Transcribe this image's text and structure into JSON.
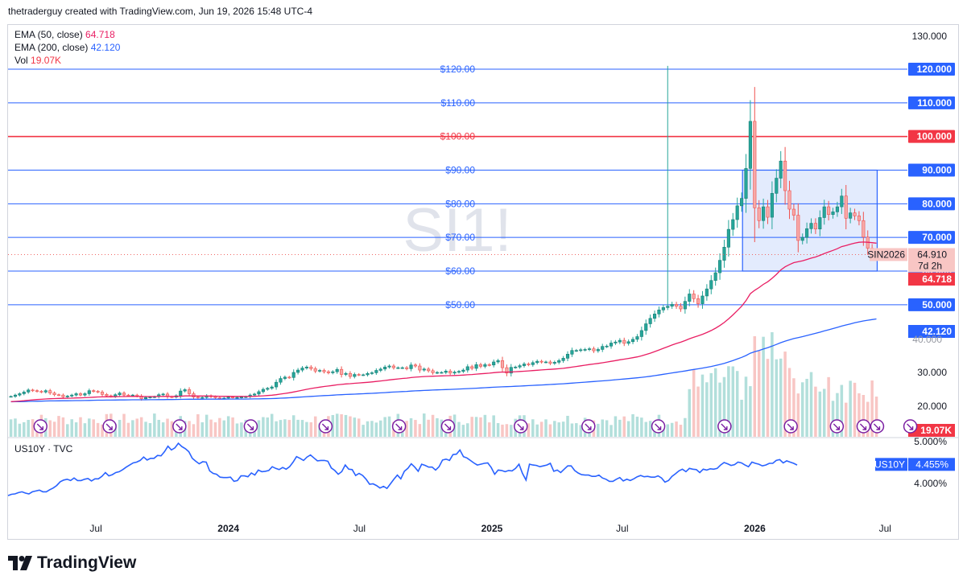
{
  "header": {
    "attribution": "thetraderguy created with TradingView.com, Jun 19, 2026 15:48 UTC-4"
  },
  "legend": {
    "ema50_label": "EMA (50, close)",
    "ema50_value": "64.718",
    "ema200_label": "EMA (200, close)",
    "ema200_value": "42.120",
    "vol_label": "Vol",
    "vol_value": "19.07K"
  },
  "watermark": "SI1!",
  "brand": {
    "name": "TradingView"
  },
  "colors": {
    "up": "#26a69a",
    "down": "#ef5350",
    "ema50": "#e91e63",
    "ema200": "#2962ff",
    "hline": "#2962ff",
    "hline_major": "#f23645",
    "box_fill": "#e3ebfd",
    "box_border": "#2962ff",
    "us10y": "#2962ff"
  },
  "chart_data": {
    "type": "candlestick",
    "symbol": "SI1!",
    "price_scale": {
      "min": 10,
      "max": 135,
      "ticks": [
        "130.000",
        "30.000",
        "20.000"
      ]
    },
    "horizontal_lines": [
      {
        "value": 120,
        "label": "$120.00",
        "axis_label": "120.000"
      },
      {
        "value": 110,
        "label": "$110.00",
        "axis_label": "110.000"
      },
      {
        "value": 100,
        "label": "$100.00",
        "axis_label": "100.000",
        "major": true
      },
      {
        "value": 90,
        "label": "$90.00",
        "axis_label": "90.000"
      },
      {
        "value": 80,
        "label": "$80.00",
        "axis_label": "80.000"
      },
      {
        "value": 70,
        "label": "$70.00",
        "axis_label": "70.000"
      },
      {
        "value": 60,
        "label": "$60.00",
        "axis_label": "60.000"
      },
      {
        "value": 50,
        "label": "$50.00",
        "axis_label": "50.000"
      }
    ],
    "range_box": {
      "price_top": 90,
      "price_bottom": 60,
      "start": "2025-12-15",
      "end": "2026-06-20"
    },
    "last_price": {
      "symbol": "SIN2026",
      "value": "64.910",
      "countdown": "7d 2h"
    },
    "ema50_last": "64.718",
    "ema200_last": "42.120",
    "vol_last": "19.07K",
    "x_axis": {
      "start": "2023-03-01",
      "end": "2026-08-01",
      "labels": [
        {
          "date": "2023-07-01",
          "text": "Jul"
        },
        {
          "date": "2024-01-01",
          "text": "2024"
        },
        {
          "date": "2024-07-01",
          "text": "Jul"
        },
        {
          "date": "2025-01-01",
          "text": "2025"
        },
        {
          "date": "2025-07-01",
          "text": "Jul"
        },
        {
          "date": "2026-01-01",
          "text": "2026"
        },
        {
          "date": "2026-07-01",
          "text": "Jul"
        }
      ]
    },
    "closes": [
      22.9,
      23.3,
      23.7,
      24.2,
      24.8,
      24.6,
      24.4,
      24.2,
      24.6,
      23.9,
      23.4,
      23.3,
      22.8,
      23.0,
      23.3,
      23.7,
      23.3,
      23.7,
      24.6,
      24.4,
      24.2,
      23.5,
      23.1,
      22.9,
      23.4,
      23.9,
      23.3,
      23.2,
      23.3,
      23.0,
      22.2,
      22.6,
      22.7,
      22.8,
      23.4,
      23.6,
      22.8,
      22.7,
      23.1,
      24.5,
      24.9,
      23.7,
      22.7,
      22.5,
      22.6,
      23.1,
      22.8,
      22.5,
      22.3,
      22.4,
      22.7,
      22.6,
      22.6,
      22.7,
      22.8,
      23.3,
      23.6,
      24.3,
      25.0,
      25.3,
      25.7,
      27.1,
      28.2,
      28.6,
      28.5,
      30.0,
      30.7,
      31.3,
      31.6,
      31.1,
      30.4,
      30.6,
      30.2,
      29.9,
      30.2,
      30.9,
      29.4,
      29.7,
      28.8,
      29.4,
      29.3,
      29.3,
      29.7,
      29.9,
      30.6,
      31.0,
      31.6,
      31.9,
      31.4,
      31.4,
      31.4,
      31.1,
      32.2,
      31.9,
      30.7,
      31.0,
      30.5,
      29.9,
      30.0,
      30.0,
      30.4,
      29.8,
      30.1,
      30.3,
      30.7,
      31.7,
      31.2,
      32.3,
      31.8,
      32.3,
      32.2,
      33.1,
      33.5,
      31.4,
      29.8,
      31.5,
      31.6,
      32.0,
      32.5,
      32.3,
      32.9,
      33.3,
      33.1,
      33.1,
      32.7,
      33.0,
      33.5,
      34.2,
      35.4,
      36.5,
      36.5,
      36.7,
      36.8,
      37.0,
      36.4,
      36.8,
      37.7,
      37.8,
      38.7,
      39.0,
      39.5,
      38.6,
      39.1,
      39.8,
      40.6,
      42.4,
      44.4,
      46.0,
      47.3,
      48.5,
      49.2,
      49.6,
      50.1,
      49.6,
      48.8,
      51.0,
      53.2,
      51.8,
      50.3,
      52.6,
      54.7,
      57.2,
      59.5,
      63.2,
      67.1,
      72.4,
      75.3,
      79.4,
      81.6,
      90.5,
      104.5,
      78.8,
      75.0,
      79.1,
      76.0,
      83.1,
      87.6,
      92.7,
      83.9,
      78.4,
      76.6,
      69.1,
      70.0,
      72.6,
      74.2,
      72.5,
      75.9,
      79.1,
      76.8,
      77.6,
      79.1,
      82.3,
      75.7,
      77.3,
      76.4,
      75.0,
      70.1,
      66.8,
      65.6,
      64.9
    ],
    "ema50_series": "computed from closes",
    "ema200_series": "computed from closes",
    "volume_units": "K"
  },
  "us10y": {
    "label": "US10Y · TVC",
    "symbol": "US10Y",
    "last_value": "4.455%",
    "scale": {
      "min": 3.7,
      "max": 5.15,
      "ticks": [
        "5.000%",
        "4.000%"
      ]
    },
    "values": [
      3.71,
      3.74,
      3.75,
      3.78,
      3.8,
      3.77,
      3.75,
      3.8,
      3.82,
      3.84,
      3.8,
      3.8,
      3.85,
      3.89,
      3.95,
      4.04,
      4.08,
      4.1,
      4.07,
      4.13,
      4.07,
      4.07,
      4.1,
      4.12,
      4.06,
      4.11,
      4.11,
      4.17,
      4.26,
      4.18,
      4.21,
      4.26,
      4.28,
      4.33,
      4.39,
      4.44,
      4.49,
      4.51,
      4.55,
      4.63,
      4.56,
      4.6,
      4.6,
      4.67,
      4.66,
      4.76,
      4.89,
      4.8,
      4.85,
      4.96,
      4.88,
      4.83,
      4.76,
      4.6,
      4.53,
      4.47,
      4.52,
      4.51,
      4.3,
      4.24,
      4.22,
      4.15,
      4.14,
      4.14,
      4.15,
      4.05,
      4.07,
      4.18,
      4.18,
      4.16,
      4.25,
      4.2,
      4.32,
      4.28,
      4.29,
      4.31,
      4.4,
      4.36,
      4.33,
      4.38,
      4.34,
      4.4,
      4.51,
      4.64,
      4.6,
      4.55,
      4.63,
      4.68,
      4.61,
      4.54,
      4.55,
      4.55,
      4.53,
      4.37,
      4.31,
      4.22,
      4.28,
      4.44,
      4.34,
      4.33,
      4.19,
      4.24,
      4.19,
      4.1,
      3.98,
      3.99,
      3.95,
      3.89,
      3.93,
      3.88,
      3.99,
      4.1,
      4.2,
      4.11,
      4.29,
      4.36,
      4.47,
      4.39,
      4.29,
      4.46,
      4.43,
      4.39,
      4.39,
      4.32,
      4.4,
      4.56,
      4.58,
      4.55,
      4.69,
      4.7,
      4.8,
      4.64,
      4.61,
      4.55,
      4.49,
      4.44,
      4.46,
      4.48,
      4.49,
      4.38,
      4.22,
      4.32,
      4.31,
      4.28,
      4.31,
      4.3,
      4.36,
      4.46,
      4.24,
      4.08,
      4.46,
      4.44,
      4.43,
      4.4,
      4.42,
      4.44,
      4.48,
      4.29,
      4.32,
      4.26,
      4.34,
      4.42,
      4.42,
      4.31,
      4.25,
      4.21,
      4.2,
      4.2,
      4.17,
      4.17,
      4.2,
      4.13,
      4.1,
      4.05,
      4.05,
      4.1,
      4.14,
      4.06,
      4.1,
      4.07,
      4.11,
      4.16,
      4.19,
      4.16,
      4.17,
      4.15,
      4.15,
      4.18,
      4.13,
      4.03,
      4.07,
      4.17,
      4.23,
      4.3,
      4.34,
      4.28,
      4.36,
      4.34,
      4.33,
      4.26,
      4.34,
      4.32,
      4.35,
      4.34,
      4.36,
      4.44,
      4.5,
      4.47,
      4.43,
      4.45,
      4.51,
      4.49,
      4.44,
      4.4,
      4.51,
      4.48,
      4.46,
      4.42,
      4.44,
      4.48,
      4.48,
      4.55,
      4.57,
      4.49,
      4.54,
      4.51,
      4.48,
      4.44
    ]
  },
  "markers": {
    "dates": [
      "2023-04-15",
      "2023-07-20",
      "2023-10-25",
      "2024-02-01",
      "2024-05-15",
      "2024-08-25",
      "2024-11-01",
      "2025-02-10",
      "2025-05-15",
      "2025-08-20",
      "2025-11-20",
      "2026-02-20",
      "2026-04-25",
      "2026-06-01",
      "2026-06-20",
      "2026-08-05"
    ]
  }
}
